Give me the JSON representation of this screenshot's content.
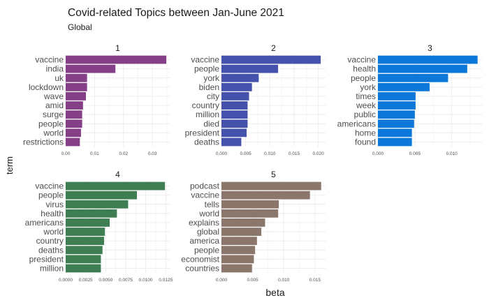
{
  "title": "Covid-related Topics between Jan-June 2021",
  "subtitle": "Global",
  "xlabel": "beta",
  "ylabel": "term",
  "colors": {
    "panel_1": "#853f86",
    "panel_2": "#4452ac",
    "panel_3": "#0b77d8",
    "panel_4": "#3f7d52",
    "panel_5": "#8a766b",
    "grid": "#ebebeb",
    "text": "#1a1a1a",
    "tick": "#4d4d4d"
  },
  "chart_data": [
    {
      "type": "bar",
      "orientation": "horizontal",
      "panel": "1",
      "categories": [
        "vaccine",
        "india",
        "uk",
        "lockdown",
        "wave",
        "amid",
        "surge",
        "people",
        "world",
        "restrictions"
      ],
      "values": [
        0.0348,
        0.0172,
        0.0074,
        0.0074,
        0.007,
        0.006,
        0.0057,
        0.0057,
        0.0053,
        0.0049
      ],
      "xlim": [
        0,
        0.036
      ],
      "xticks": [
        0,
        0.01,
        0.02,
        0.03
      ],
      "xtick_labels": [
        "0.00",
        "0.01",
        "0.02",
        "0.03"
      ]
    },
    {
      "type": "bar",
      "orientation": "horizontal",
      "panel": "2",
      "categories": [
        "vaccine",
        "people",
        "york",
        "biden",
        "city",
        "country",
        "million",
        "died",
        "president",
        "deaths"
      ],
      "values": [
        0.0205,
        0.0117,
        0.0077,
        0.0063,
        0.0057,
        0.0054,
        0.0054,
        0.0054,
        0.0052,
        0.0041
      ],
      "xlim": [
        0,
        0.0215
      ],
      "xticks": [
        0,
        0.005,
        0.01,
        0.015,
        0.02
      ],
      "xtick_labels": [
        "0.000",
        "0.005",
        "0.010",
        "0.015",
        "0.020"
      ]
    },
    {
      "type": "bar",
      "orientation": "horizontal",
      "panel": "3",
      "categories": [
        "vaccine",
        "health",
        "people",
        "york",
        "times",
        "week",
        "public",
        "americans",
        "home",
        "found"
      ],
      "values": [
        0.0135,
        0.0121,
        0.0095,
        0.007,
        0.0051,
        0.0051,
        0.005,
        0.0049,
        0.0046,
        0.0046
      ],
      "xlim": [
        0,
        0.0141
      ],
      "xticks": [
        0,
        0.005,
        0.01
      ],
      "xtick_labels": [
        "0.000",
        "0.005",
        "0.010"
      ]
    },
    {
      "type": "bar",
      "orientation": "horizontal",
      "panel": "4",
      "categories": [
        "vaccine",
        "people",
        "virus",
        "health",
        "americans",
        "world",
        "country",
        "deaths",
        "president",
        "million"
      ],
      "values": [
        0.0124,
        0.0089,
        0.0078,
        0.0064,
        0.0055,
        0.0049,
        0.0048,
        0.0046,
        0.0044,
        0.0044
      ],
      "xlim": [
        0,
        0.013
      ],
      "xticks": [
        0,
        0.0025,
        0.005,
        0.0075,
        0.01,
        0.0125
      ],
      "xtick_labels": [
        "0.0000",
        "0.0025",
        "0.0050",
        "0.0075",
        "0.0100",
        "0.0125"
      ]
    },
    {
      "type": "bar",
      "orientation": "horizontal",
      "panel": "5",
      "categories": [
        "podcast",
        "vaccine",
        "tells",
        "world",
        "explains",
        "global",
        "america",
        "people",
        "economist",
        "countries"
      ],
      "values": [
        0.016,
        0.0142,
        0.0092,
        0.0091,
        0.007,
        0.0064,
        0.0057,
        0.0054,
        0.0052,
        0.0049
      ],
      "xlim": [
        0,
        0.0167
      ],
      "xticks": [
        0,
        0.005,
        0.01,
        0.015
      ],
      "xtick_labels": [
        "0.000",
        "0.005",
        "0.010",
        "0.015"
      ]
    }
  ]
}
